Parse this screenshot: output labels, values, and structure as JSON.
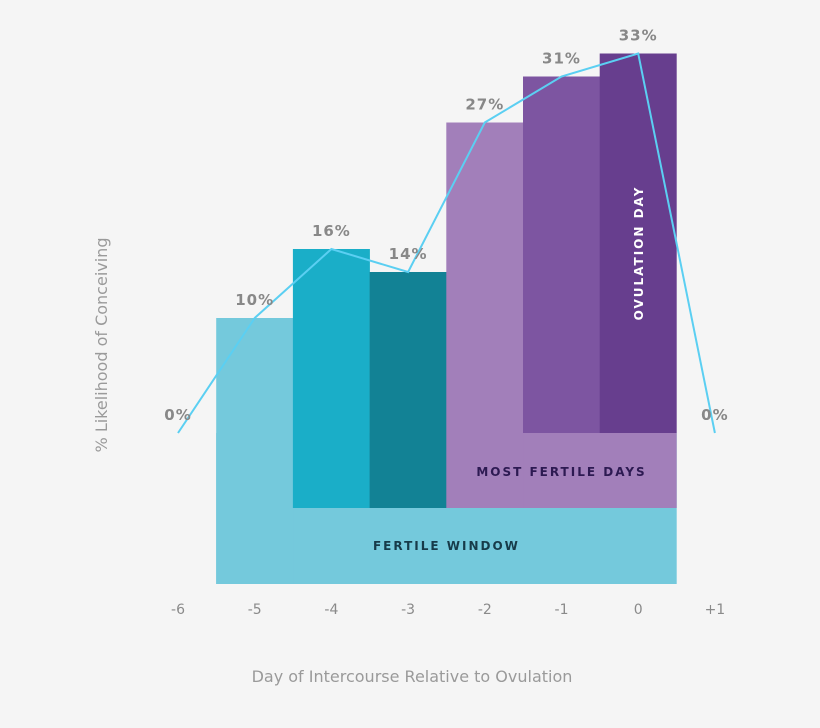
{
  "chart_data": {
    "type": "bar",
    "xlabel": "Day of Intercourse Relative to Ovulation",
    "ylabel": "% Likelihood of Conceiving",
    "x": [
      -6,
      -5,
      -4,
      -3,
      -2,
      -1,
      0,
      1
    ],
    "tick_labels": [
      "-6",
      "-5",
      "-4",
      "-3",
      "-2",
      "-1",
      "0",
      "+1"
    ],
    "values": [
      0,
      10,
      16,
      14,
      27,
      31,
      33,
      0
    ],
    "value_labels": [
      "0%",
      "10%",
      "16%",
      "14%",
      "27%",
      "31%",
      "33%",
      "0%"
    ],
    "bar_colors": [
      "#f5f5f5",
      "#74c9dc",
      "#1aaec8",
      "#128295",
      "#a27fba",
      "#7d55a1",
      "#673e8e",
      "#f5f5f5"
    ],
    "line_color": "#5bcff2",
    "bands": [
      {
        "label": "FERTILE WINDOW",
        "from": -5,
        "to": 0,
        "color": "#74c9dc",
        "text_color": "#173b4a"
      },
      {
        "label": "MOST FERTILE DAYS",
        "from": -2,
        "to": 0,
        "color": "#a27fba",
        "text_color": "#2d1a52"
      },
      {
        "label": "OVULATION DAY",
        "from": 0,
        "to": 0,
        "color": "#673e8e",
        "text_color": "#ffffff"
      }
    ],
    "grid": false,
    "legend": "none"
  }
}
